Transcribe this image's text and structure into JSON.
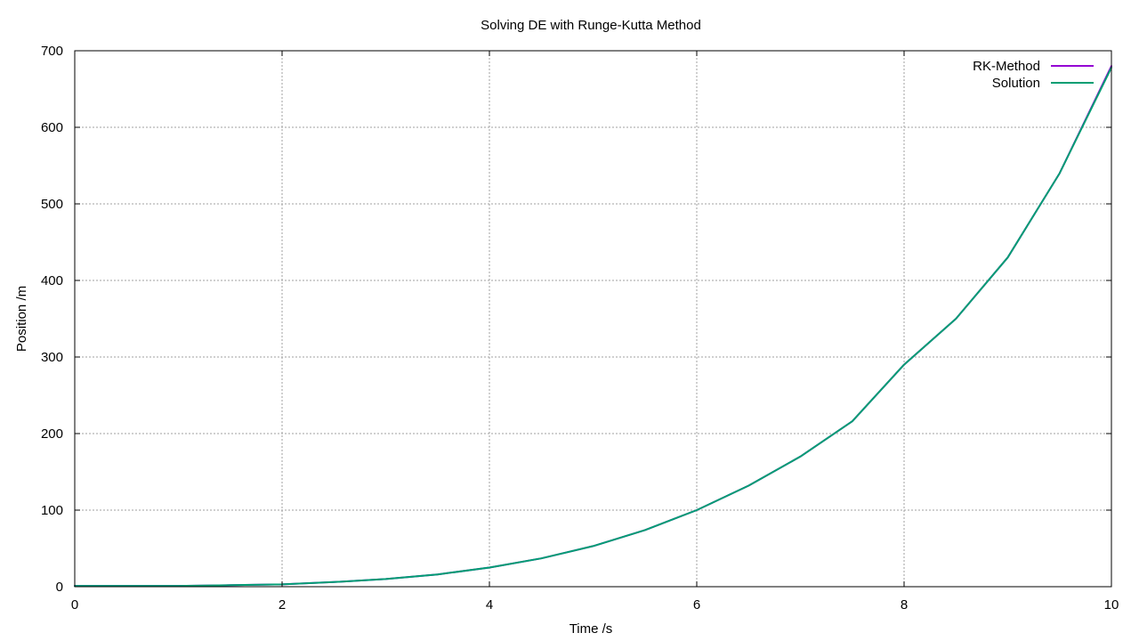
{
  "chart_data": {
    "type": "line",
    "title": "Solving DE with Runge-Kutta Method",
    "xlabel": "Time /s",
    "ylabel": "Position /m",
    "xlim": [
      0,
      10
    ],
    "ylim": [
      0,
      700
    ],
    "xticks": [
      0,
      2,
      4,
      6,
      8,
      10
    ],
    "yticks": [
      0,
      100,
      200,
      300,
      400,
      500,
      600,
      700
    ],
    "grid": true,
    "legend_position": "top-right",
    "series": [
      {
        "name": "RK-Method",
        "color": "#9400d3",
        "x": [
          0,
          0.5,
          1,
          1.5,
          2,
          2.5,
          3,
          3.5,
          4,
          4.5,
          5,
          5.5,
          6,
          6.5,
          7,
          7.5,
          8,
          8.5,
          9,
          9.5,
          10
        ],
        "y": [
          1,
          1,
          1,
          2,
          3,
          6,
          10,
          16,
          25,
          37,
          53,
          74,
          100,
          132,
          170,
          216,
          290,
          350,
          430,
          540,
          680
        ]
      },
      {
        "name": "Solution",
        "color": "#009e73",
        "x": [
          0,
          0.5,
          1,
          1.5,
          2,
          2.5,
          3,
          3.5,
          4,
          4.5,
          5,
          5.5,
          6,
          6.5,
          7,
          7.5,
          8,
          8.5,
          9,
          9.5,
          10
        ],
        "y": [
          1,
          1,
          1,
          2,
          3,
          6,
          10,
          16,
          25,
          37,
          53,
          74,
          100,
          132,
          170,
          216,
          290,
          350,
          430,
          540,
          678
        ]
      }
    ]
  }
}
